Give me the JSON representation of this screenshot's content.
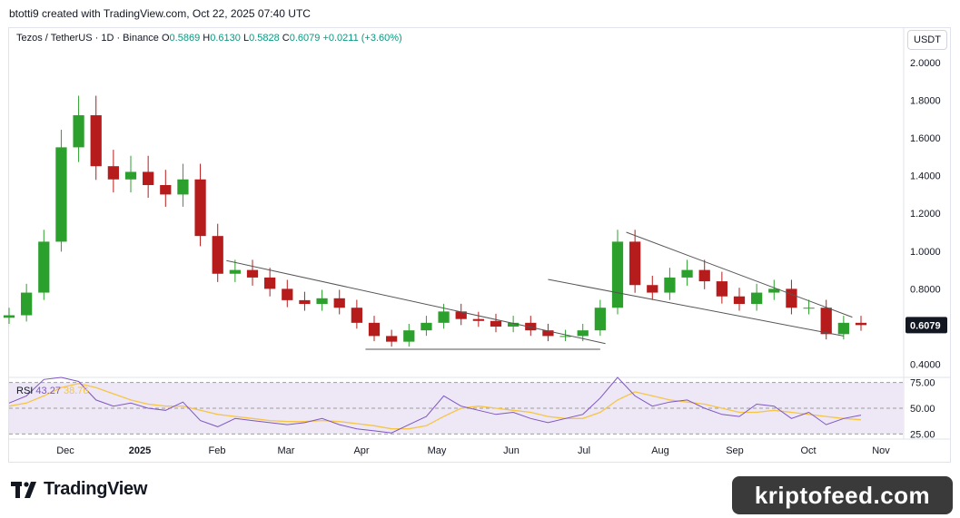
{
  "header": {
    "caption": "btotti9 created with TradingView.com, Oct 22, 2025 07:40 UTC"
  },
  "legend": {
    "symbol": "Tezos / TetherUS · 1D · Binance",
    "open_label": "O",
    "open": "0.5869",
    "high_label": "H",
    "high": "0.6130",
    "low_label": "L",
    "low": "0.5828",
    "close_label": "C",
    "close": "0.6079",
    "change": "+0.0211 (+3.60%)"
  },
  "currency_button": "USDT",
  "rsi_legend": {
    "label": "RSI",
    "value": "43.27",
    "ma_value": "38.76"
  },
  "colors": {
    "up": "#089981",
    "down": "#f23645",
    "candle_up": "#2ca02c",
    "candle_down": "#b71c1c",
    "trendline": "#555555",
    "rsi_line": "#7e57c2",
    "rsi_ma": "#f7c545",
    "rsi_band": "#ede7f6"
  },
  "brand": {
    "logo_text": "TradingView",
    "watermark": "kriptofeed.com",
    "logo_icon": "tradingview-logo-icon"
  },
  "chart_data": [
    {
      "type": "candlestick",
      "title": "",
      "ylim": [
        0.35,
        2.1
      ],
      "y_ticks": [
        "2.0000",
        "1.8000",
        "1.6000",
        "1.4000",
        "1.2000",
        "1.0000",
        "0.8000",
        "0.6000",
        "0.4000"
      ],
      "last_price_label": "0.6079",
      "x_ticks": [
        "Dec",
        "2025",
        "Feb",
        "Mar",
        "Apr",
        "May",
        "Jun",
        "Jul",
        "Aug",
        "Sep",
        "Oct",
        "Nov"
      ],
      "x_tick_bold": [
        false,
        true,
        false,
        false,
        false,
        false,
        false,
        false,
        false,
        false,
        false,
        false
      ],
      "series": [
        {
          "name": "",
          "x": [
            "Nov 15",
            "Nov 22",
            "Nov 29",
            "Dec 6",
            "Dec 13",
            "Dec 20",
            "Dec 27",
            "Jan 3",
            "Jan 10",
            "Jan 17",
            "Jan 24",
            "Jan 31",
            "Feb 7",
            "Feb 14",
            "Feb 21",
            "Feb 28",
            "Mar 7",
            "Mar 14",
            "Mar 21",
            "Mar 28",
            "Apr 4",
            "Apr 11",
            "Apr 18",
            "Apr 25",
            "May 2",
            "May 9",
            "May 16",
            "May 23",
            "May 30",
            "Jun 6",
            "Jun 13",
            "Jun 20",
            "Jun 27",
            "Jul 4",
            "Jul 11",
            "Jul 18",
            "Jul 25",
            "Aug 1",
            "Aug 8",
            "Aug 15",
            "Aug 22",
            "Aug 29",
            "Sep 5",
            "Sep 12",
            "Sep 19",
            "Sep 26",
            "Oct 3",
            "Oct 10",
            "Oct 17",
            "Oct 22"
          ],
          "close": [
            0.66,
            0.78,
            1.05,
            1.55,
            1.72,
            1.45,
            1.38,
            1.42,
            1.35,
            1.3,
            1.38,
            1.08,
            0.88,
            0.9,
            0.86,
            0.8,
            0.74,
            0.72,
            0.75,
            0.7,
            0.62,
            0.55,
            0.52,
            0.58,
            0.62,
            0.68,
            0.64,
            0.63,
            0.6,
            0.62,
            0.58,
            0.55,
            0.55,
            0.58,
            0.7,
            1.05,
            0.82,
            0.78,
            0.86,
            0.9,
            0.84,
            0.76,
            0.72,
            0.78,
            0.8,
            0.7,
            0.7,
            0.56,
            0.62,
            0.6079
          ]
        }
      ]
    },
    {
      "type": "line",
      "title": "",
      "ylim": [
        20,
        80
      ],
      "y_ticks": [
        "75.00",
        "50.00",
        "25.00"
      ],
      "series": [
        {
          "name": "RSI",
          "values": [
            55,
            62,
            78,
            80,
            76,
            58,
            52,
            55,
            50,
            48,
            56,
            38,
            32,
            40,
            38,
            36,
            34,
            36,
            40,
            34,
            30,
            28,
            26,
            34,
            42,
            62,
            52,
            48,
            44,
            46,
            40,
            36,
            40,
            44,
            60,
            80,
            62,
            52,
            56,
            58,
            50,
            44,
            42,
            54,
            52,
            40,
            46,
            34,
            40,
            43.27
          ]
        },
        {
          "name": "RSI-based MA",
          "values": [
            52,
            55,
            62,
            70,
            74,
            70,
            64,
            58,
            54,
            52,
            52,
            48,
            44,
            42,
            40,
            38,
            37,
            37,
            38,
            37,
            35,
            33,
            30,
            30,
            33,
            42,
            50,
            52,
            50,
            48,
            46,
            42,
            40,
            40,
            46,
            58,
            66,
            62,
            58,
            56,
            54,
            50,
            46,
            46,
            48,
            46,
            44,
            42,
            40,
            38.76
          ]
        }
      ]
    }
  ]
}
